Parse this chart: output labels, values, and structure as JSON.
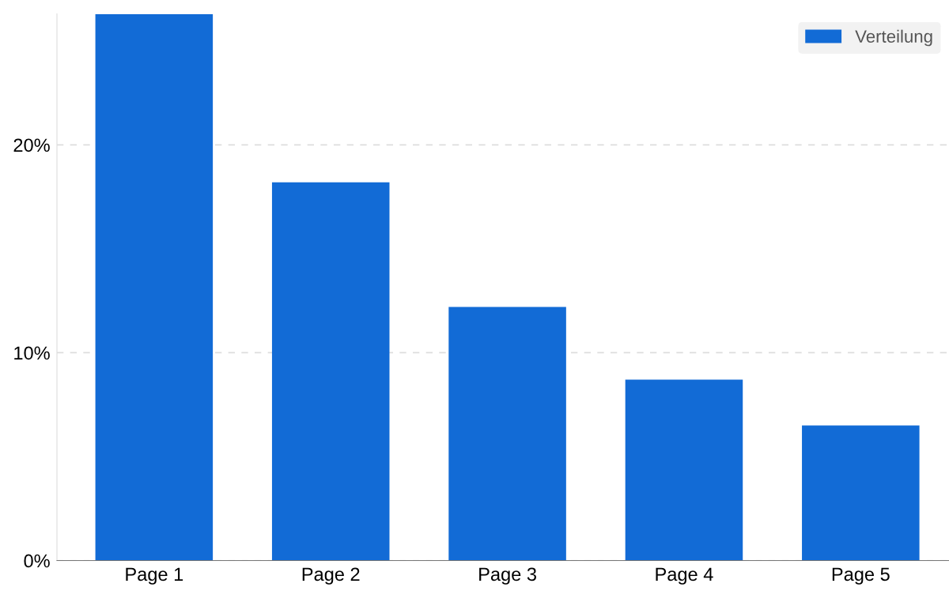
{
  "chart_data": {
    "type": "bar",
    "categories": [
      "Page 1",
      "Page 2",
      "Page 3",
      "Page 4",
      "Page 5"
    ],
    "series": [
      {
        "name": "Verteilung",
        "color": "#126bd6",
        "values": [
          26.3,
          18.2,
          12.2,
          8.7,
          6.5
        ]
      }
    ],
    "ylim": [
      0,
      26.3
    ],
    "yticks": [
      {
        "value": 0,
        "label": "0%"
      },
      {
        "value": 10,
        "label": "10%"
      },
      {
        "value": 20,
        "label": "20%"
      }
    ],
    "grid": "y",
    "legend": "top right"
  }
}
